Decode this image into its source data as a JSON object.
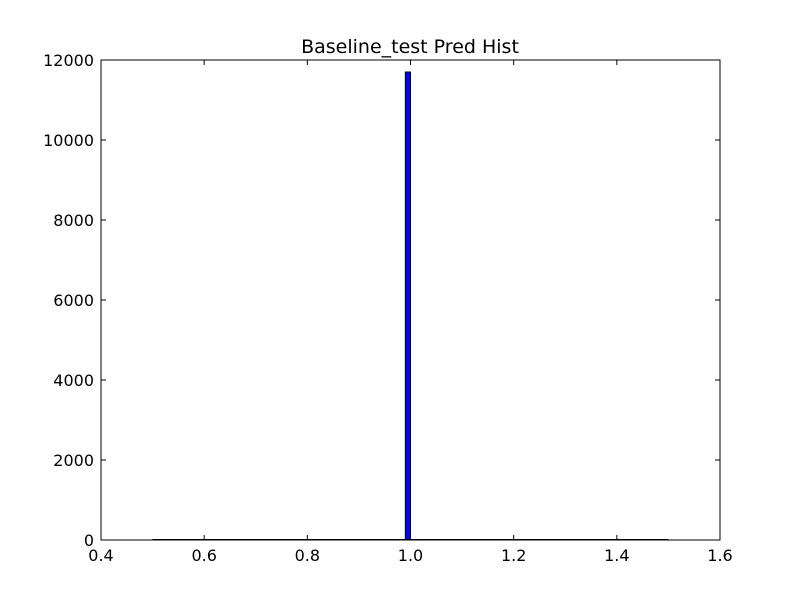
{
  "chart_data": {
    "type": "bar",
    "title": "Baseline_test Pred Hist",
    "xlabel": "",
    "ylabel": "",
    "xlim": [
      0.4,
      1.6
    ],
    "ylim": [
      0,
      12000
    ],
    "x_ticks": [
      0.4,
      0.6,
      0.8,
      1.0,
      1.2,
      1.4,
      1.6
    ],
    "x_tick_labels": [
      "0.4",
      "0.6",
      "0.8",
      "1.0",
      "1.2",
      "1.4",
      "1.6"
    ],
    "y_ticks": [
      0,
      2000,
      4000,
      6000,
      8000,
      10000,
      12000
    ],
    "y_tick_labels": [
      "0",
      "2000",
      "4000",
      "6000",
      "8000",
      "10000",
      "12000"
    ],
    "bins": {
      "range": [
        0.5,
        1.5
      ],
      "count": 100,
      "edges_start": [
        0.99,
        1.0
      ],
      "values": [
        11700,
        0
      ]
    },
    "grid": false,
    "legend": "none",
    "colors": {
      "bar": "#0000ff",
      "bar_edge": "#000000",
      "axes": "#000000",
      "background": "#ffffff"
    }
  }
}
